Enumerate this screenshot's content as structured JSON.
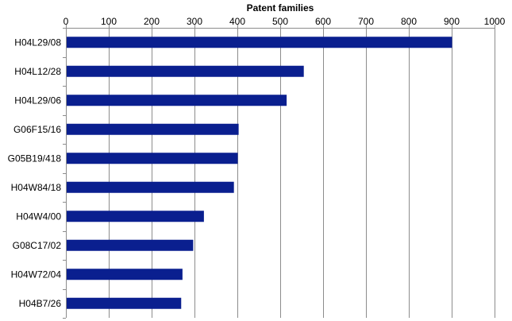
{
  "chart_data": {
    "type": "bar",
    "orientation": "horizontal",
    "x_axis_position": "top",
    "title": "",
    "xlabel": "Patent families",
    "ylabel": "",
    "categories": [
      "H04L29/08",
      "H04L12/28",
      "H04L29/06",
      "G06F15/16",
      "G05B19/418",
      "H04W84/18",
      "H04W4/00",
      "G08C17/02",
      "H04W72/04",
      "H04B7/26"
    ],
    "values": [
      901,
      555,
      515,
      403,
      401,
      392,
      322,
      297,
      272,
      269
    ],
    "xlim": [
      0,
      1000
    ],
    "xticks": [
      "0",
      "100",
      "200",
      "300",
      "400",
      "500",
      "600",
      "700",
      "800",
      "900",
      "1000"
    ],
    "grid": true,
    "bar_color": "#0a1f8f"
  }
}
